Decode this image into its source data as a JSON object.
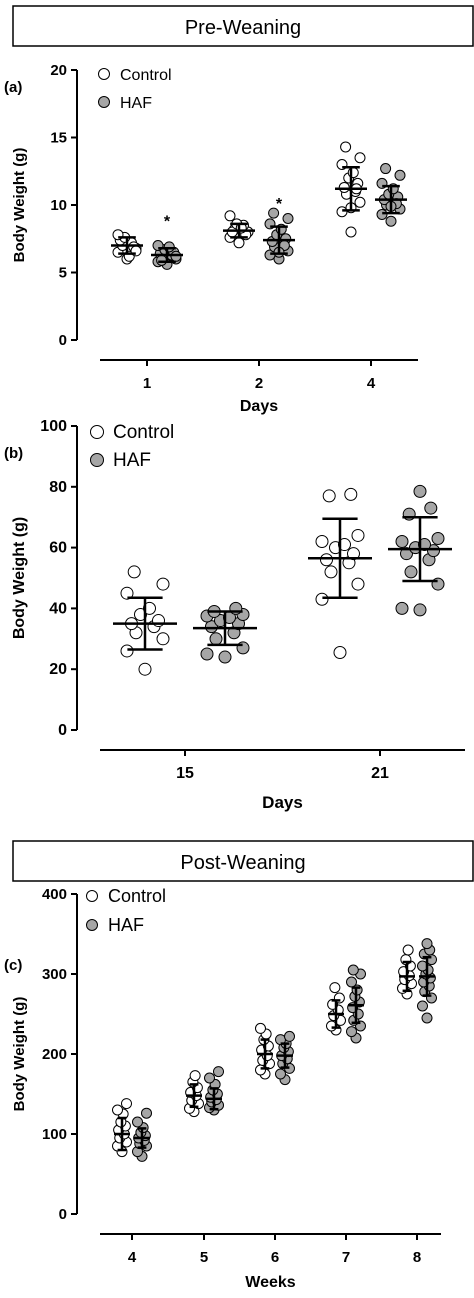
{
  "headers": {
    "pre": "Pre-Weaning",
    "post": "Post-Weaning"
  },
  "colors": {
    "control_fill": "#ffffff",
    "haf_fill": "#a6a6a6",
    "ink": "#000000"
  },
  "chart_data": [
    {
      "panel": "(a)",
      "type": "scatter",
      "xlabel": "Days",
      "ylabel": "Body  Weight  (g)",
      "ylim": [
        0,
        20
      ],
      "yticks": [
        0,
        5,
        10,
        15,
        20
      ],
      "categories": [
        "1",
        "2",
        "4"
      ],
      "legend": [
        "Control",
        "HAF"
      ],
      "legend_position": "top-left",
      "annotations": [
        {
          "text": "*",
          "category": "1",
          "series": "HAF",
          "y": 9.0
        },
        {
          "text": "*",
          "category": "2",
          "series": "HAF",
          "y": 10.3
        }
      ],
      "series": [
        {
          "name": "Control",
          "points": [
            [
              6.0,
              6.5,
              6.8,
              7.0,
              7.2,
              7.4,
              6.9,
              7.6,
              6.2,
              7.8,
              6.6
            ],
            [
              7.2,
              7.6,
              8.0,
              8.2,
              8.5,
              8.0,
              7.8,
              8.6,
              8.3,
              9.2
            ],
            [
              8.0,
              9.5,
              10.2,
              10.8,
              11.0,
              11.3,
              11.6,
              12.0,
              12.4,
              13.0,
              13.5,
              14.3,
              11.2,
              9.8
            ]
          ],
          "mean": [
            7.0,
            8.1,
            11.2
          ],
          "sd": [
            0.6,
            0.5,
            1.6
          ]
        },
        {
          "name": "HAF",
          "points": [
            [
              5.6,
              5.8,
              6.0,
              6.1,
              6.3,
              6.4,
              6.5,
              6.7,
              6.9,
              7.0,
              6.2,
              5.9
            ],
            [
              6.0,
              6.3,
              6.6,
              6.9,
              7.1,
              7.3,
              7.5,
              7.8,
              8.2,
              8.6,
              9.0,
              9.4,
              7.0,
              6.5
            ],
            [
              8.8,
              9.3,
              9.7,
              10.0,
              10.2,
              10.4,
              10.6,
              10.8,
              11.2,
              11.6,
              12.2,
              12.7,
              10.1,
              9.9
            ]
          ],
          "mean": [
            6.3,
            7.4,
            10.4
          ],
          "sd": [
            0.5,
            1.0,
            1.0
          ]
        }
      ]
    },
    {
      "panel": "(b)",
      "type": "scatter",
      "xlabel": "Days",
      "ylabel": "Body  Weight  (g)",
      "ylim": [
        0,
        100
      ],
      "yticks": [
        0,
        20,
        40,
        60,
        80,
        100
      ],
      "categories": [
        "15",
        "21"
      ],
      "legend": [
        "Control",
        "HAF"
      ],
      "legend_position": "top-left",
      "series": [
        {
          "name": "Control",
          "points": [
            [
              20,
              26,
              30,
              32,
              34,
              35,
              36,
              38,
              40,
              45,
              48,
              52
            ],
            [
              25.5,
              43,
              48,
              52,
              55,
              56,
              58,
              60,
              61,
              62,
              64,
              77,
              77.5
            ]
          ],
          "mean": [
            35,
            56.5
          ],
          "sd": [
            8.5,
            13
          ]
        },
        {
          "name": "HAF",
          "points": [
            [
              24,
              25,
              27,
              30,
              32,
              34,
              35,
              36,
              37,
              37.5,
              38,
              39,
              40
            ],
            [
              39.5,
              40,
              48,
              52,
              56,
              58,
              59,
              60,
              61,
              62,
              63,
              71,
              73,
              78.5
            ]
          ],
          "mean": [
            33.5,
            59.5
          ],
          "sd": [
            5.5,
            10.5
          ]
        }
      ]
    },
    {
      "panel": "(c)",
      "type": "scatter",
      "xlabel": "Weeks",
      "ylabel": "Body  Weight  (g)",
      "ylim": [
        0,
        400
      ],
      "yticks": [
        0,
        100,
        200,
        300,
        400
      ],
      "categories": [
        "4",
        "5",
        "6",
        "7",
        "8"
      ],
      "legend": [
        "Control",
        "HAF"
      ],
      "legend_position": "top-left",
      "series": [
        {
          "name": "Control",
          "points": [
            [
              78,
              85,
              90,
              95,
              100,
              105,
              110,
              115,
              125,
              130,
              138
            ],
            [
              128,
              132,
              138,
              142,
              148,
              152,
              158,
              165,
              173
            ],
            [
              175,
              180,
              188,
              192,
              198,
              205,
              210,
              218,
              225,
              232
            ],
            [
              230,
              235,
              242,
              248,
              255,
              262,
              270,
              283
            ],
            [
              275,
              282,
              288,
              293,
              298,
              303,
              310,
              318,
              330
            ]
          ],
          "mean": [
            100,
            148,
            200,
            250,
            297
          ],
          "sd": [
            20,
            14,
            18,
            17,
            18
          ]
        },
        {
          "name": "HAF",
          "points": [
            [
              72,
              78,
              85,
              88,
              92,
              95,
              98,
              102,
              108,
              115,
              126
            ],
            [
              130,
              133,
              136,
              140,
              143,
              146,
              150,
              155,
              162,
              170,
              178
            ],
            [
              168,
              175,
              182,
              188,
              194,
              198,
              203,
              208,
              213,
              218,
              222
            ],
            [
              220,
              228,
              235,
              242,
              250,
              258,
              265,
              272,
              280,
              290,
              300,
              305
            ],
            [
              245,
              260,
              270,
              278,
              285,
              290,
              295,
              300,
              305,
              310,
              318,
              325,
              330,
              338
            ]
          ],
          "mean": [
            95,
            144,
            198,
            261,
            297
          ],
          "sd": [
            12,
            13,
            15,
            22,
            24
          ]
        }
      ]
    }
  ]
}
